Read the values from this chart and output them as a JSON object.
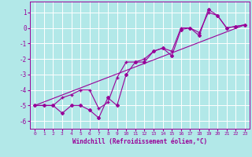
{
  "xlabel": "Windchill (Refroidissement éolien,°C)",
  "bg_color": "#b2e8e8",
  "grid_color": "#ffffff",
  "line_color": "#990099",
  "xlim": [
    -0.5,
    23.5
  ],
  "ylim": [
    -6.5,
    1.7
  ],
  "yticks": [
    1,
    0,
    -1,
    -2,
    -3,
    -4,
    -5,
    -6
  ],
  "xticks": [
    0,
    1,
    2,
    3,
    4,
    5,
    6,
    7,
    8,
    9,
    10,
    11,
    12,
    13,
    14,
    15,
    16,
    17,
    18,
    19,
    20,
    21,
    22,
    23
  ],
  "series1_x": [
    0,
    1,
    2,
    3,
    4,
    5,
    6,
    7,
    8,
    9,
    10,
    11,
    12,
    13,
    14,
    15,
    16,
    17,
    18,
    19,
    20,
    21,
    22,
    23
  ],
  "series1_y": [
    -5.0,
    -5.0,
    -5.0,
    -5.5,
    -5.0,
    -5.0,
    -5.3,
    -5.8,
    -4.5,
    -5.0,
    -3.0,
    -2.2,
    -2.2,
    -1.5,
    -1.3,
    -1.8,
    -0.1,
    0.0,
    -0.5,
    1.2,
    0.8,
    0.0,
    0.1,
    0.2
  ],
  "series2_x": [
    0,
    1,
    2,
    3,
    4,
    5,
    6,
    7,
    8,
    9,
    10,
    11,
    12,
    13,
    14,
    15,
    16,
    17,
    18,
    19,
    20,
    21,
    22,
    23
  ],
  "series2_y": [
    -5.0,
    -5.0,
    -5.0,
    -4.5,
    -4.3,
    -4.0,
    -4.0,
    -5.2,
    -4.8,
    -3.2,
    -2.2,
    -2.2,
    -2.0,
    -1.5,
    -1.3,
    -1.5,
    0.0,
    0.0,
    -0.3,
    1.0,
    0.8,
    0.0,
    0.1,
    0.2
  ],
  "series3_x": [
    0,
    23
  ],
  "series3_y": [
    -5.0,
    0.2
  ]
}
